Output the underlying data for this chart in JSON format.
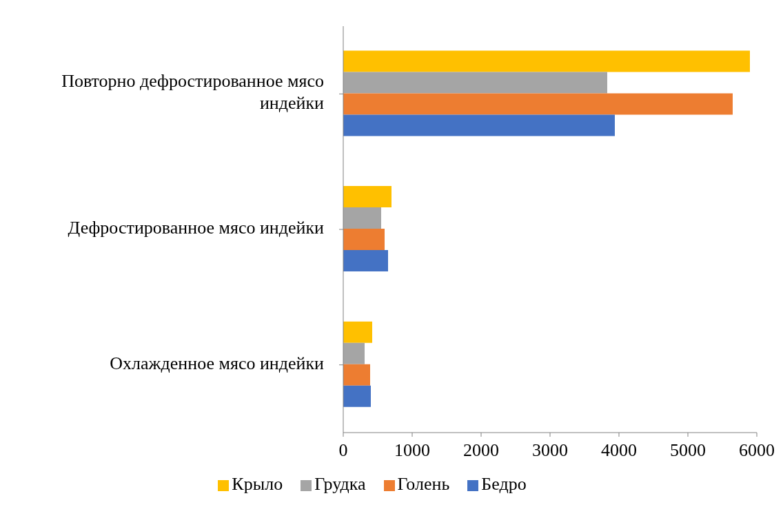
{
  "chart_data": {
    "type": "bar",
    "orientation": "horizontal",
    "categories": [
      "Повторно дефростированное мясо индейки",
      "Дефростированное мясо индейки",
      "Охлажденное мясо индейки"
    ],
    "series": [
      {
        "name": "Крыло",
        "color": "#ffc000",
        "values": [
          5900,
          700,
          420
        ]
      },
      {
        "name": "Грудка",
        "color": "#a5a5a5",
        "values": [
          3830,
          550,
          310
        ]
      },
      {
        "name": "Голень",
        "color": "#ed7d31",
        "values": [
          5650,
          600,
          390
        ]
      },
      {
        "name": "Бедро",
        "color": "#4472c4",
        "values": [
          3940,
          650,
          400
        ]
      }
    ],
    "xlim": [
      0,
      6000
    ],
    "xticks": [
      0,
      1000,
      2000,
      3000,
      4000,
      5000,
      6000
    ],
    "grid": false,
    "legend": "bottom"
  }
}
